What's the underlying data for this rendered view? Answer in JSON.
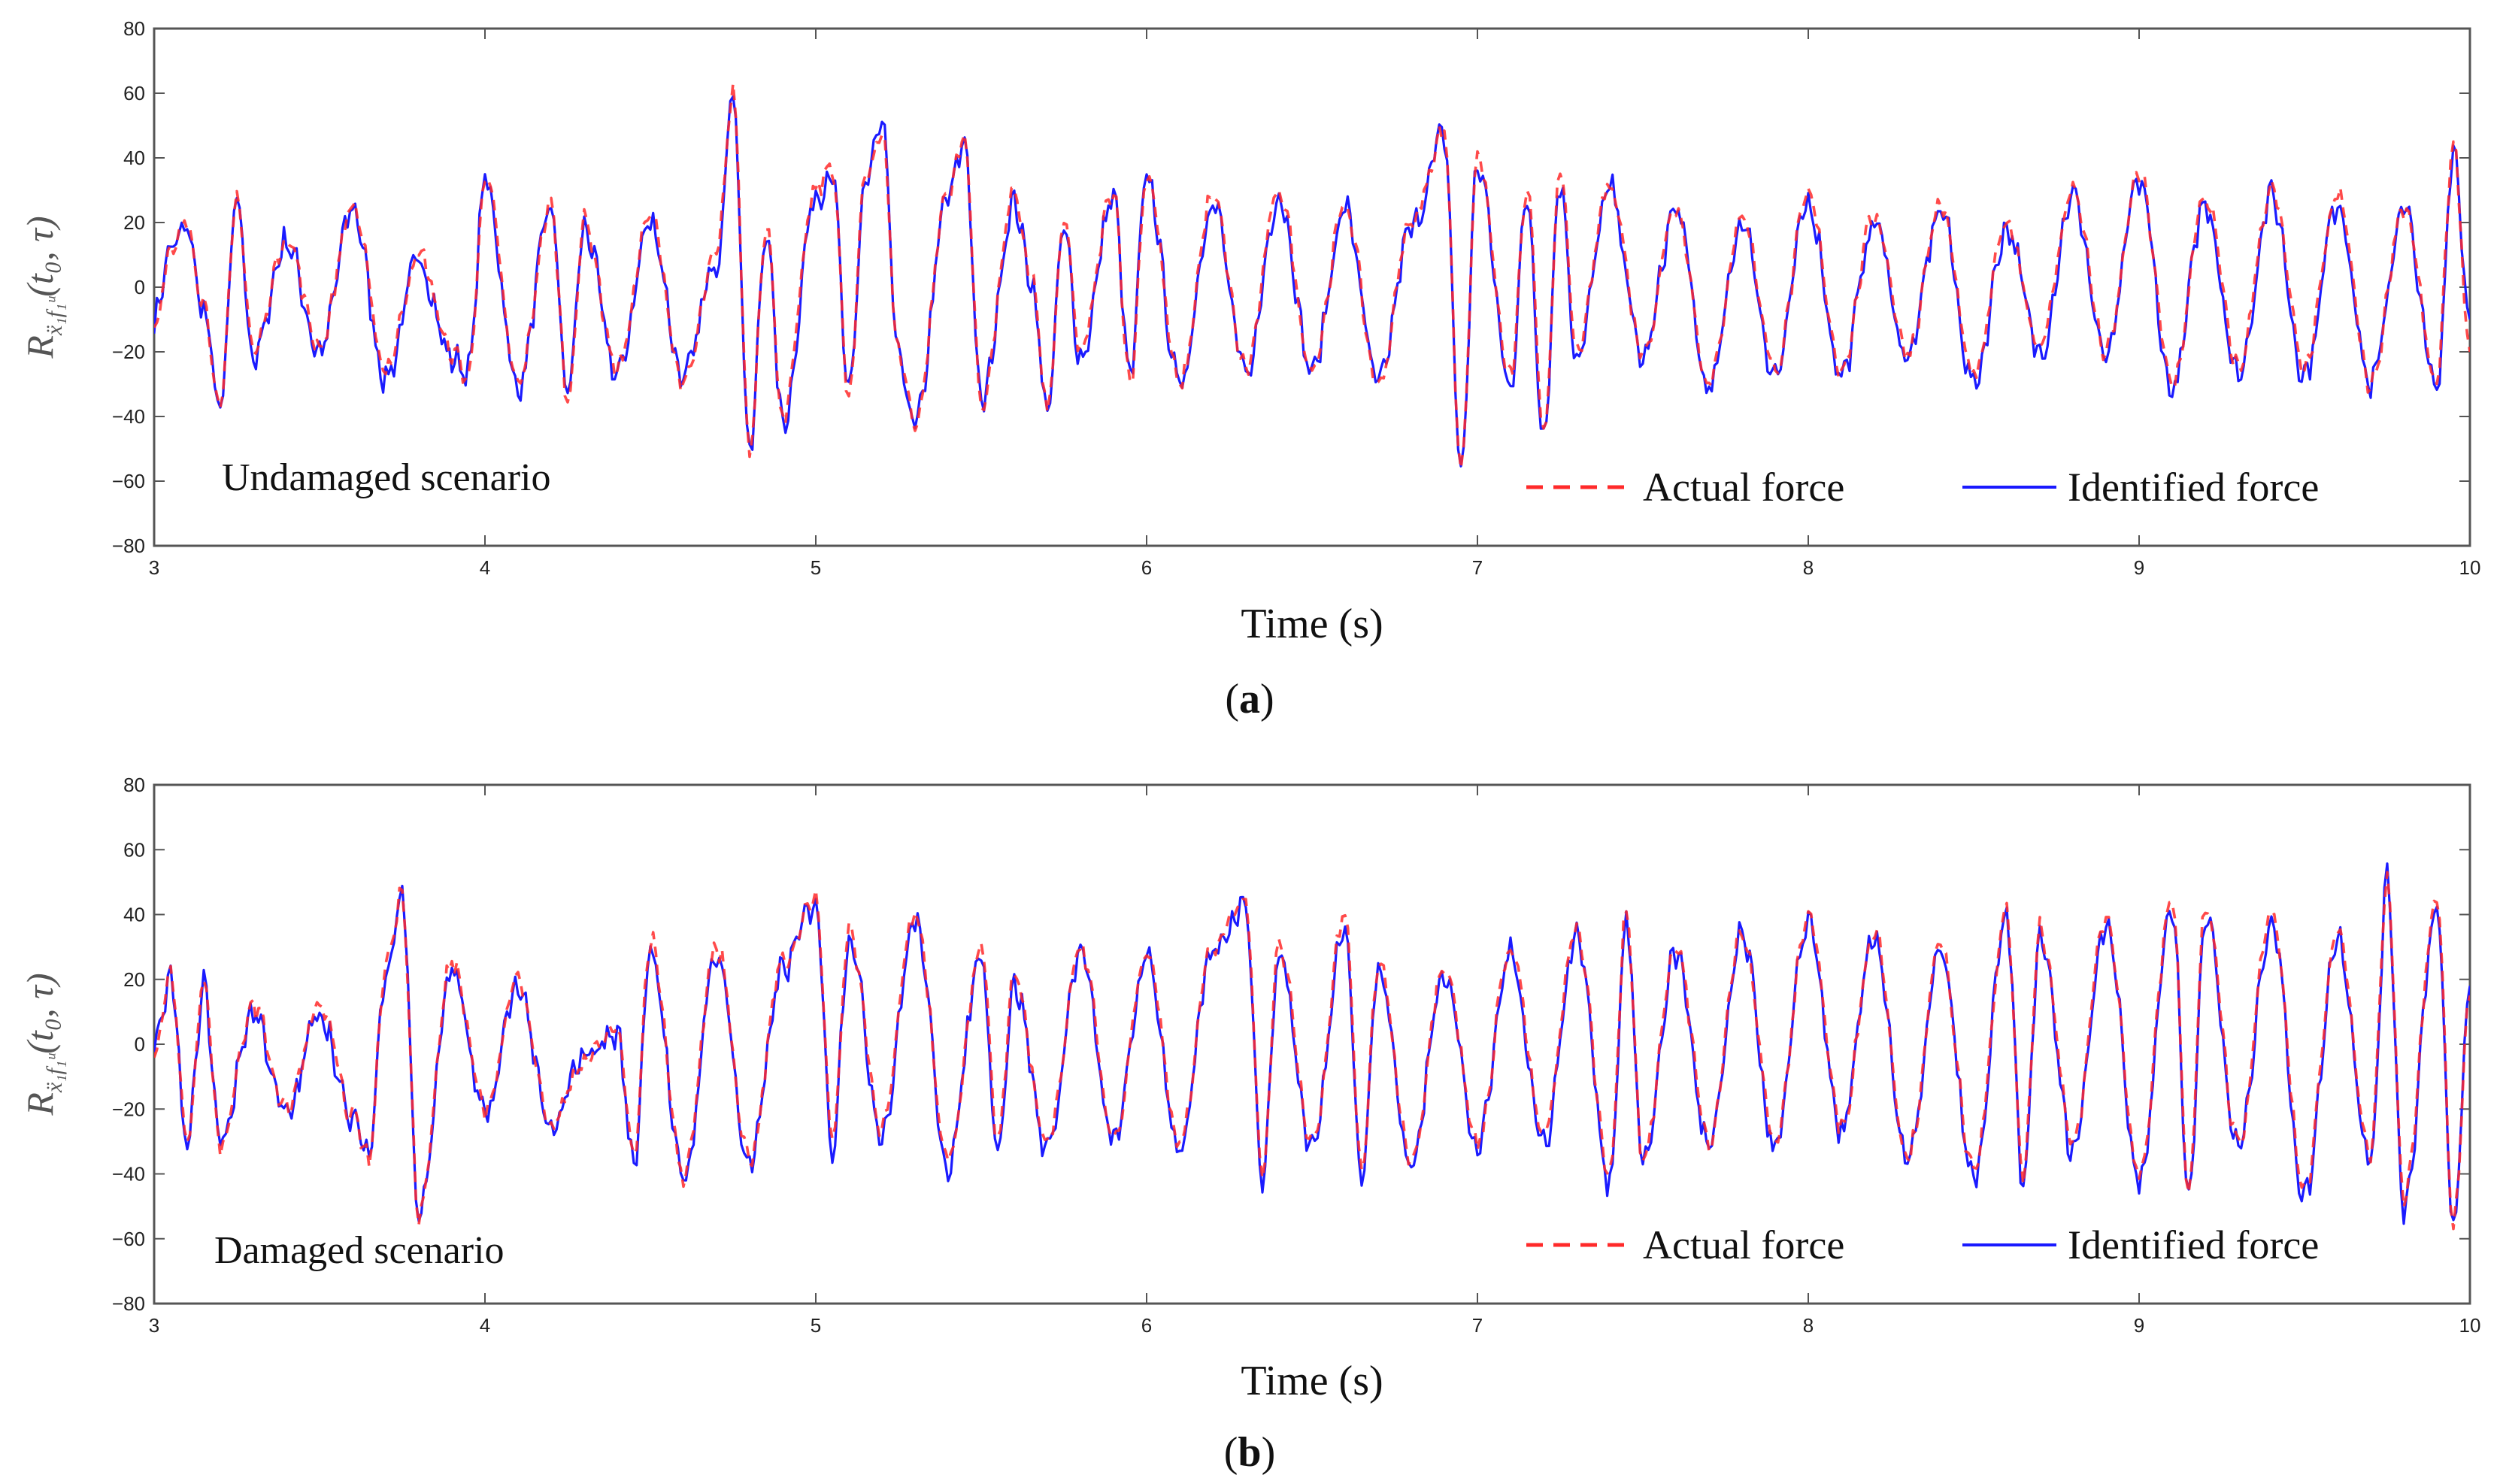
{
  "figure": {
    "panels": [
      {
        "scenario_label": "Undamaged scenario",
        "caption_label": "a",
        "ylabel_main": "R",
        "ylabel_sub": "ẍ₁f₁ᵘ",
        "ylabel_args": "(t₀, τ)"
      },
      {
        "scenario_label": "Damaged scenario",
        "caption_label": "b",
        "ylabel_main": "R",
        "ylabel_sub": "ẍ₁f₁ᵘ",
        "ylabel_args": "(t₀, τ)"
      }
    ]
  },
  "chart_data": [
    {
      "type": "line",
      "title": "",
      "xlabel": "Time (s)",
      "ylabel": "R_ẍ₁f₁ᵘ(t₀, τ)",
      "xlim": [
        3,
        10
      ],
      "ylim": [
        -80,
        80
      ],
      "xticks": [
        "3",
        "4",
        "5",
        "6",
        "7",
        "8",
        "9",
        "10"
      ],
      "yticks": [
        "80",
        "60",
        "40",
        "20",
        "0",
        "−20",
        "−40",
        "−60",
        "−80"
      ],
      "legend": {
        "placement": "bottom-right"
      },
      "series": [
        {
          "name": "Actual force",
          "style": "dashed",
          "color": "#ff2a2a",
          "x": [
            3.0,
            3.05,
            3.1,
            3.15,
            3.2,
            3.25,
            3.3,
            3.4,
            3.5,
            3.6,
            3.7,
            3.8,
            3.9,
            3.95,
            4.0,
            4.1,
            4.2,
            4.25,
            4.3,
            4.4,
            4.5,
            4.6,
            4.7,
            4.75,
            4.8,
            4.85,
            4.9,
            5.0,
            5.05,
            5.1,
            5.15,
            5.2,
            5.25,
            5.3,
            5.4,
            5.45,
            5.5,
            5.6,
            5.65,
            5.7,
            5.75,
            5.8,
            5.9,
            5.95,
            6.0,
            6.1,
            6.2,
            6.3,
            6.4,
            6.5,
            6.6,
            6.7,
            6.8,
            6.9,
            6.95,
            7.0,
            7.1,
            7.15,
            7.2,
            7.25,
            7.3,
            7.4,
            7.5,
            7.6,
            7.7,
            7.8,
            7.9,
            8.0,
            8.1,
            8.2,
            8.3,
            8.4,
            8.5,
            8.6,
            8.7,
            8.8,
            8.9,
            9.0,
            9.1,
            9.2,
            9.3,
            9.4,
            9.5,
            9.6,
            9.7,
            9.8,
            9.9,
            9.95,
            10.0
          ],
          "y": [
            -12,
            10,
            20,
            -5,
            -38,
            28,
            -20,
            15,
            -18,
            25,
            -25,
            10,
            -20,
            -28,
            34,
            -30,
            25,
            -35,
            20,
            -25,
            22,
            -30,
            10,
            60,
            -50,
            20,
            -40,
            30,
            38,
            -35,
            35,
            48,
            -20,
            -42,
            30,
            46,
            -36,
            28,
            5,
            -38,
            20,
            -20,
            30,
            -30,
            35,
            -30,
            28,
            -25,
            30,
            -25,
            25,
            -30,
            20,
            48,
            -56,
            40,
            -28,
            30,
            -45,
            35,
            -20,
            32,
            -20,
            25,
            -30,
            22,
            -25,
            28,
            -25,
            22,
            -20,
            25,
            -28,
            20,
            -18,
            30,
            -20,
            35,
            -30,
            28,
            -25,
            30,
            -25,
            28,
            -30,
            25,
            -30,
            45,
            -20
          ]
        },
        {
          "name": "Identified force",
          "style": "solid",
          "color": "#1a1aff",
          "x": [
            3.0,
            3.05,
            3.1,
            3.15,
            3.2,
            3.25,
            3.3,
            3.4,
            3.5,
            3.6,
            3.7,
            3.8,
            3.9,
            3.95,
            4.0,
            4.1,
            4.2,
            4.25,
            4.3,
            4.4,
            4.5,
            4.6,
            4.7,
            4.75,
            4.8,
            4.85,
            4.9,
            5.0,
            5.05,
            5.1,
            5.15,
            5.2,
            5.25,
            5.3,
            5.4,
            5.45,
            5.5,
            5.6,
            5.65,
            5.7,
            5.75,
            5.8,
            5.9,
            5.95,
            6.0,
            6.1,
            6.2,
            6.3,
            6.4,
            6.5,
            6.6,
            6.7,
            6.8,
            6.9,
            6.95,
            7.0,
            7.1,
            7.15,
            7.2,
            7.25,
            7.3,
            7.4,
            7.5,
            7.6,
            7.7,
            7.8,
            7.9,
            8.0,
            8.1,
            8.2,
            8.3,
            8.4,
            8.5,
            8.6,
            8.7,
            8.8,
            8.9,
            9.0,
            9.1,
            9.2,
            9.3,
            9.4,
            9.5,
            9.6,
            9.7,
            9.8,
            9.9,
            9.95,
            10.0
          ],
          "y": [
            -10,
            12,
            18,
            -8,
            -38,
            27,
            -22,
            14,
            -20,
            24,
            -28,
            8,
            -22,
            -26,
            33,
            -31,
            24,
            -33,
            18,
            -27,
            20,
            -28,
            8,
            60,
            -52,
            18,
            -42,
            28,
            36,
            -34,
            33,
            50,
            -22,
            -43,
            28,
            45,
            -36,
            26,
            3,
            -38,
            18,
            -22,
            28,
            -28,
            34,
            -30,
            26,
            -27,
            28,
            -26,
            24,
            -30,
            18,
            47,
            -57,
            38,
            -30,
            28,
            -46,
            33,
            -22,
            30,
            -22,
            24,
            -32,
            20,
            -27,
            26,
            -27,
            20,
            -22,
            24,
            -30,
            18,
            -20,
            28,
            -22,
            33,
            -32,
            26,
            -27,
            28,
            -27,
            26,
            -30,
            24,
            -32,
            43,
            -10
          ]
        }
      ]
    },
    {
      "type": "line",
      "title": "",
      "xlabel": "Time (s)",
      "ylabel": "R_ẍ₁f₁ᵘ(t₀, τ)",
      "xlim": [
        3,
        10
      ],
      "ylim": [
        -80,
        80
      ],
      "xticks": [
        "3",
        "4",
        "5",
        "6",
        "7",
        "8",
        "9",
        "10"
      ],
      "yticks": [
        "80",
        "60",
        "40",
        "20",
        "0",
        "−20",
        "−40",
        "−60",
        "−80"
      ],
      "legend": {
        "placement": "bottom-right"
      },
      "series": [
        {
          "name": "Actual force",
          "style": "dashed",
          "color": "#ff2a2a",
          "x": [
            3.0,
            3.05,
            3.1,
            3.15,
            3.2,
            3.3,
            3.4,
            3.5,
            3.6,
            3.65,
            3.7,
            3.75,
            3.8,
            3.9,
            4.0,
            4.1,
            4.2,
            4.3,
            4.4,
            4.45,
            4.5,
            4.6,
            4.7,
            4.8,
            4.9,
            5.0,
            5.05,
            5.1,
            5.2,
            5.3,
            5.4,
            5.5,
            5.55,
            5.6,
            5.7,
            5.8,
            5.9,
            6.0,
            6.1,
            6.2,
            6.3,
            6.35,
            6.4,
            6.5,
            6.6,
            6.65,
            6.7,
            6.8,
            6.9,
            7.0,
            7.1,
            7.2,
            7.3,
            7.4,
            7.45,
            7.5,
            7.6,
            7.7,
            7.8,
            7.9,
            8.0,
            8.1,
            8.2,
            8.3,
            8.4,
            8.5,
            8.6,
            8.65,
            8.7,
            8.8,
            8.9,
            9.0,
            9.1,
            9.15,
            9.2,
            9.3,
            9.4,
            9.5,
            9.6,
            9.7,
            9.75,
            9.8,
            9.9,
            9.95,
            10.0
          ],
          "y": [
            -5,
            22,
            -30,
            20,
            -32,
            12,
            -20,
            12,
            -22,
            -35,
            25,
            46,
            -52,
            25,
            -20,
            20,
            -25,
            -5,
            5,
            -35,
            32,
            -40,
            30,
            -35,
            25,
            46,
            -30,
            35,
            -25,
            40,
            -35,
            30,
            -30,
            20,
            -30,
            30,
            -28,
            28,
            -30,
            30,
            45,
            -40,
            30,
            -30,
            40,
            -40,
            25,
            -35,
            25,
            -30,
            30,
            -28,
            35,
            -40,
            40,
            -35,
            30,
            -30,
            35,
            -30,
            40,
            -25,
            35,
            -35,
            30,
            -40,
            40,
            -42,
            35,
            -30,
            40,
            -40,
            45,
            -45,
            42,
            -30,
            40,
            -45,
            35,
            -35,
            50,
            -48,
            45,
            -55,
            15
          ]
        },
        {
          "name": "Identified force",
          "style": "solid",
          "color": "#1a1aff",
          "x": [
            3.0,
            3.05,
            3.1,
            3.15,
            3.2,
            3.3,
            3.4,
            3.5,
            3.6,
            3.65,
            3.7,
            3.75,
            3.8,
            3.9,
            4.0,
            4.1,
            4.2,
            4.3,
            4.4,
            4.45,
            4.5,
            4.6,
            4.7,
            4.8,
            4.9,
            5.0,
            5.05,
            5.1,
            5.2,
            5.3,
            5.4,
            5.5,
            5.55,
            5.6,
            5.7,
            5.8,
            5.9,
            6.0,
            6.1,
            6.2,
            6.3,
            6.35,
            6.4,
            6.5,
            6.6,
            6.65,
            6.7,
            6.8,
            6.9,
            7.0,
            7.1,
            7.2,
            7.3,
            7.4,
            7.45,
            7.5,
            7.6,
            7.7,
            7.8,
            7.9,
            8.0,
            8.1,
            8.2,
            8.3,
            8.4,
            8.5,
            8.6,
            8.65,
            8.7,
            8.8,
            8.9,
            9.0,
            9.1,
            9.15,
            9.2,
            9.3,
            9.4,
            9.5,
            9.6,
            9.7,
            9.75,
            9.8,
            9.9,
            9.95,
            10.0
          ],
          "y": [
            -3,
            20,
            -32,
            18,
            -30,
            10,
            -22,
            10,
            -24,
            -33,
            23,
            46,
            -53,
            23,
            -22,
            18,
            -27,
            -3,
            3,
            -37,
            30,
            -42,
            28,
            -37,
            23,
            44,
            -32,
            33,
            -27,
            38,
            -37,
            28,
            -32,
            18,
            -32,
            28,
            -30,
            26,
            -32,
            28,
            44,
            -42,
            28,
            -32,
            38,
            -42,
            23,
            -37,
            23,
            -32,
            28,
            -30,
            33,
            -42,
            38,
            -37,
            28,
            -32,
            33,
            -32,
            38,
            -27,
            33,
            -37,
            28,
            -42,
            38,
            -44,
            33,
            -32,
            38,
            -42,
            43,
            -47,
            40,
            -32,
            38,
            -47,
            33,
            -37,
            50,
            -50,
            43,
            -58,
            18
          ]
        }
      ]
    }
  ]
}
